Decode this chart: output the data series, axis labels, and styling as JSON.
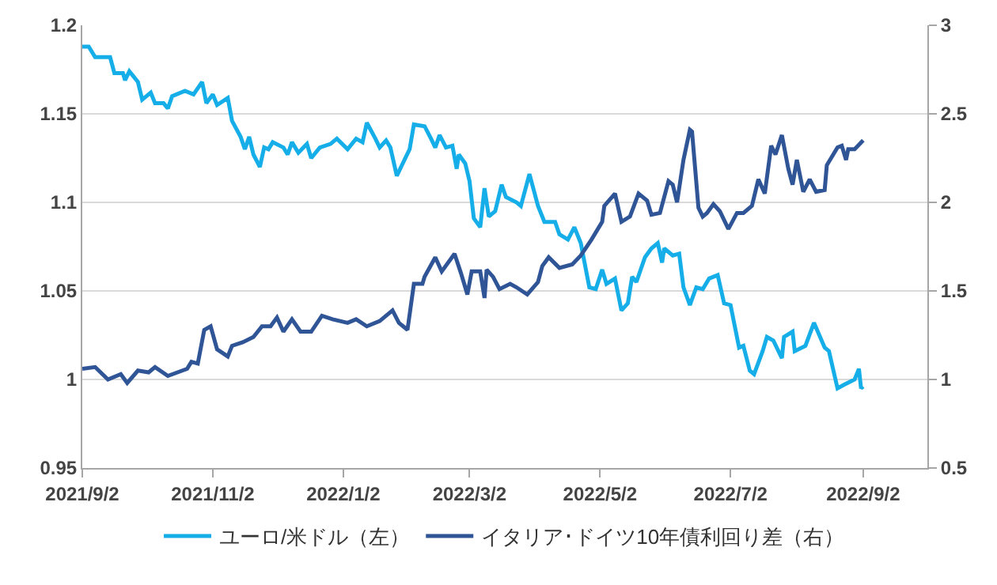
{
  "chart_data": {
    "type": "line",
    "xlim": [
      "2021-09-02",
      "2022-10-02"
    ],
    "xticks": [
      {
        "value": "2021-09-02",
        "label": "2021/9/2"
      },
      {
        "value": "2021-11-02",
        "label": "2021/11/2"
      },
      {
        "value": "2022-01-02",
        "label": "2022/1/2"
      },
      {
        "value": "2022-03-02",
        "label": "2022/3/2"
      },
      {
        "value": "2022-05-02",
        "label": "2022/5/2"
      },
      {
        "value": "2022-07-02",
        "label": "2022/7/2"
      },
      {
        "value": "2022-09-02",
        "label": "2022/9/2"
      }
    ],
    "ylim": [
      0.95,
      1.2
    ],
    "yticks": [
      0.95,
      1,
      1.05,
      1.1,
      1.15,
      1.2
    ],
    "y2lim": [
      0.5,
      3
    ],
    "y2ticks": [
      0.5,
      1,
      1.5,
      2,
      2.5,
      3
    ],
    "grid": "y",
    "legend": "bottom",
    "series": [
      {
        "name": "ユーロ/米ドル（左）",
        "color": "#16aee8",
        "x": [
          "2021-09-02",
          "2021-09-05",
          "2021-09-08",
          "2021-09-15",
          "2021-09-17",
          "2021-09-21",
          "2021-09-22",
          "2021-09-24",
          "2021-09-28",
          "2021-09-30",
          "2021-10-04",
          "2021-10-06",
          "2021-10-10",
          "2021-10-12",
          "2021-10-14",
          "2021-10-20",
          "2021-10-24",
          "2021-10-28",
          "2021-10-30",
          "2021-11-02",
          "2021-11-04",
          "2021-11-09",
          "2021-11-11",
          "2021-11-15",
          "2021-11-17",
          "2021-11-19",
          "2021-11-21",
          "2021-11-24",
          "2021-11-26",
          "2021-11-28",
          "2021-11-30",
          "2021-12-05",
          "2021-12-07",
          "2021-12-09",
          "2021-12-12",
          "2021-12-16",
          "2021-12-18",
          "2021-12-22",
          "2021-12-27",
          "2021-12-30",
          "2022-01-04",
          "2022-01-08",
          "2022-01-11",
          "2022-01-13",
          "2022-01-17",
          "2022-01-19",
          "2022-01-22",
          "2022-01-24",
          "2022-01-27",
          "2022-02-02",
          "2022-02-04",
          "2022-02-09",
          "2022-02-12",
          "2022-02-14",
          "2022-02-16",
          "2022-02-19",
          "2022-02-22",
          "2022-02-24",
          "2022-02-25",
          "2022-02-28",
          "2022-03-02",
          "2022-03-04",
          "2022-03-07",
          "2022-03-09",
          "2022-03-11",
          "2022-03-14",
          "2022-03-17",
          "2022-03-19",
          "2022-03-24",
          "2022-03-26",
          "2022-03-30",
          "2022-04-03",
          "2022-04-06",
          "2022-04-11",
          "2022-04-13",
          "2022-04-17",
          "2022-04-20",
          "2022-04-23",
          "2022-04-27",
          "2022-04-30",
          "2022-05-03",
          "2022-05-05",
          "2022-05-09",
          "2022-05-12",
          "2022-05-15",
          "2022-05-17",
          "2022-05-19",
          "2022-05-23",
          "2022-05-26",
          "2022-05-29",
          "2022-05-31",
          "2022-06-01",
          "2022-06-05",
          "2022-06-08",
          "2022-06-10",
          "2022-06-13",
          "2022-06-16",
          "2022-06-19",
          "2022-06-22",
          "2022-06-26",
          "2022-06-29",
          "2022-07-02",
          "2022-07-06",
          "2022-07-08",
          "2022-07-11",
          "2022-07-13",
          "2022-07-17",
          "2022-07-19",
          "2022-07-22",
          "2022-07-26",
          "2022-07-27",
          "2022-07-31",
          "2022-08-01",
          "2022-08-06",
          "2022-08-10",
          "2022-08-15",
          "2022-08-17",
          "2022-08-21",
          "2022-08-24",
          "2022-08-29",
          "2022-08-31",
          "2022-09-01",
          "2022-09-02"
        ],
        "values": [
          1.188,
          1.188,
          1.182,
          1.182,
          1.173,
          1.173,
          1.169,
          1.174,
          1.168,
          1.158,
          1.162,
          1.156,
          1.156,
          1.153,
          1.16,
          1.163,
          1.161,
          1.168,
          1.156,
          1.161,
          1.155,
          1.159,
          1.146,
          1.137,
          1.13,
          1.137,
          1.127,
          1.12,
          1.131,
          1.13,
          1.134,
          1.131,
          1.127,
          1.134,
          1.128,
          1.133,
          1.125,
          1.131,
          1.133,
          1.136,
          1.13,
          1.136,
          1.134,
          1.145,
          1.136,
          1.131,
          1.135,
          1.131,
          1.115,
          1.13,
          1.144,
          1.143,
          1.136,
          1.131,
          1.138,
          1.131,
          1.132,
          1.119,
          1.127,
          1.122,
          1.112,
          1.091,
          1.086,
          1.108,
          1.092,
          1.095,
          1.11,
          1.103,
          1.1,
          1.098,
          1.116,
          1.098,
          1.089,
          1.089,
          1.082,
          1.079,
          1.086,
          1.077,
          1.052,
          1.051,
          1.062,
          1.054,
          1.057,
          1.039,
          1.043,
          1.058,
          1.055,
          1.069,
          1.074,
          1.077,
          1.066,
          1.074,
          1.07,
          1.071,
          1.052,
          1.042,
          1.052,
          1.051,
          1.057,
          1.059,
          1.043,
          1.042,
          1.018,
          1.019,
          1.005,
          1.003,
          1.016,
          1.024,
          1.022,
          1.012,
          1.024,
          1.027,
          1.016,
          1.019,
          1.032,
          1.018,
          1.016,
          0.995,
          0.997,
          1.0,
          1.006,
          0.995,
          0.996
        ]
      },
      {
        "name": "イタリア･ドイツ10年債利回り差（右）",
        "color": "#2f5597",
        "axis": "y2",
        "x": [
          "2021-09-02",
          "2021-09-08",
          "2021-09-14",
          "2021-09-20",
          "2021-09-23",
          "2021-09-28",
          "2021-10-03",
          "2021-10-06",
          "2021-10-12",
          "2021-10-21",
          "2021-10-23",
          "2021-10-26",
          "2021-10-29",
          "2021-11-01",
          "2021-11-04",
          "2021-11-09",
          "2021-11-11",
          "2021-11-16",
          "2021-11-21",
          "2021-11-25",
          "2021-11-29",
          "2021-12-02",
          "2021-12-05",
          "2021-12-09",
          "2021-12-13",
          "2021-12-18",
          "2021-12-23",
          "2021-12-28",
          "2022-01-04",
          "2022-01-08",
          "2022-01-13",
          "2022-01-19",
          "2022-01-25",
          "2022-01-28",
          "2022-02-01",
          "2022-02-04",
          "2022-02-08",
          "2022-02-09",
          "2022-02-14",
          "2022-02-17",
          "2022-02-23",
          "2022-02-26",
          "2022-03-01",
          "2022-03-03",
          "2022-03-07",
          "2022-03-09",
          "2022-03-10",
          "2022-03-13",
          "2022-03-16",
          "2022-03-21",
          "2022-03-24",
          "2022-03-29",
          "2022-04-03",
          "2022-04-05",
          "2022-04-08",
          "2022-04-13",
          "2022-04-19",
          "2022-04-23",
          "2022-04-28",
          "2022-05-03",
          "2022-05-04",
          "2022-05-09",
          "2022-05-12",
          "2022-05-16",
          "2022-05-20",
          "2022-05-24",
          "2022-05-26",
          "2022-05-30",
          "2022-06-03",
          "2022-06-05",
          "2022-06-07",
          "2022-06-10",
          "2022-06-13",
          "2022-06-14",
          "2022-06-17",
          "2022-06-19",
          "2022-06-21",
          "2022-06-24",
          "2022-06-27",
          "2022-07-01",
          "2022-07-05",
          "2022-07-08",
          "2022-07-12",
          "2022-07-15",
          "2022-07-18",
          "2022-07-21",
          "2022-07-23",
          "2022-07-26",
          "2022-07-29",
          "2022-07-31",
          "2022-08-02",
          "2022-08-05",
          "2022-08-08",
          "2022-08-11",
          "2022-08-15",
          "2022-08-16",
          "2022-08-21",
          "2022-08-23",
          "2022-08-25",
          "2022-08-26",
          "2022-08-29",
          "2022-09-02"
        ],
        "values": [
          1.06,
          1.07,
          1.0,
          1.03,
          0.98,
          1.05,
          1.04,
          1.07,
          1.02,
          1.06,
          1.1,
          1.09,
          1.28,
          1.3,
          1.17,
          1.13,
          1.19,
          1.21,
          1.24,
          1.3,
          1.3,
          1.35,
          1.27,
          1.34,
          1.27,
          1.27,
          1.36,
          1.34,
          1.32,
          1.34,
          1.3,
          1.33,
          1.39,
          1.32,
          1.28,
          1.54,
          1.54,
          1.58,
          1.69,
          1.61,
          1.71,
          1.6,
          1.48,
          1.61,
          1.61,
          1.46,
          1.62,
          1.58,
          1.51,
          1.54,
          1.52,
          1.48,
          1.55,
          1.64,
          1.69,
          1.63,
          1.65,
          1.7,
          1.79,
          1.89,
          1.98,
          2.05,
          1.89,
          1.92,
          2.05,
          2.01,
          1.93,
          1.94,
          2.12,
          2.1,
          2.0,
          2.24,
          2.41,
          2.4,
          1.97,
          1.92,
          1.94,
          1.99,
          1.95,
          1.85,
          1.94,
          1.94,
          1.98,
          2.13,
          2.05,
          2.32,
          2.27,
          2.38,
          2.19,
          2.1,
          2.24,
          2.06,
          2.13,
          2.06,
          2.07,
          2.21,
          2.31,
          2.32,
          2.24,
          2.3,
          2.3,
          2.35
        ]
      }
    ]
  }
}
